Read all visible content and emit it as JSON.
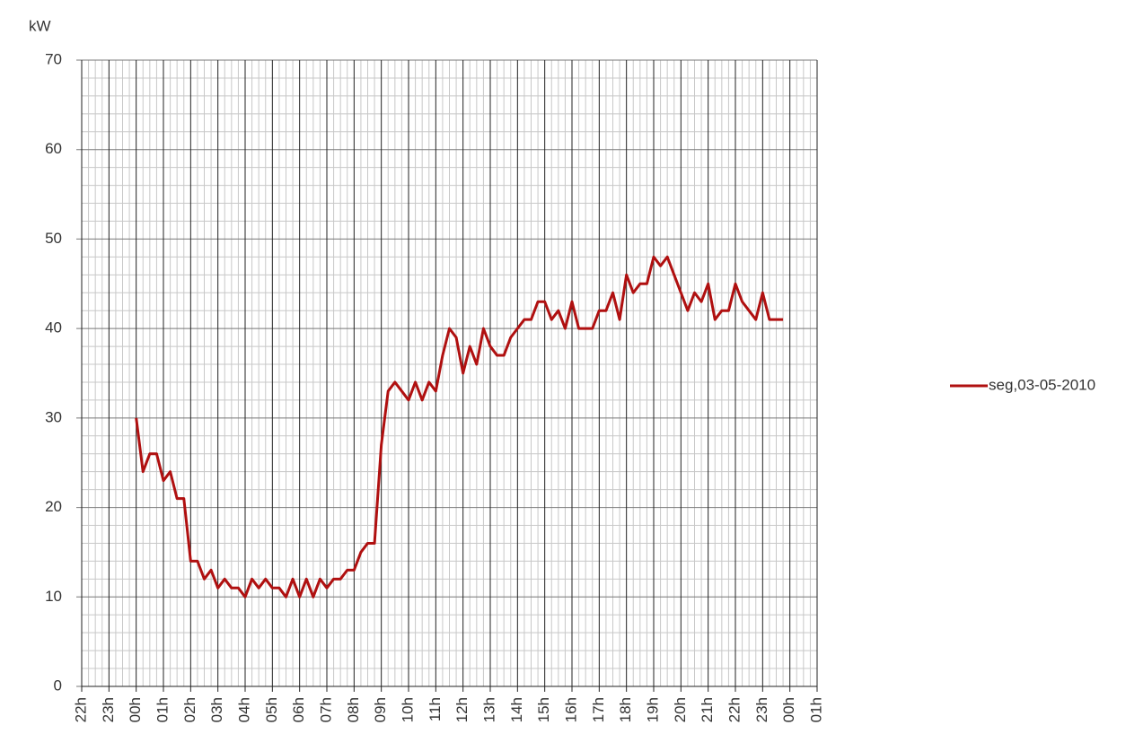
{
  "chart_data": {
    "type": "line",
    "y_label": "kW",
    "categories": [
      "22h",
      null,
      null,
      null,
      "23h",
      null,
      null,
      null,
      "00h",
      null,
      null,
      null,
      "01h",
      null,
      null,
      null,
      "02h",
      null,
      null,
      null,
      "03h",
      null,
      null,
      null,
      "04h",
      null,
      null,
      null,
      "05h",
      null,
      null,
      null,
      "06h",
      null,
      null,
      null,
      "07h",
      null,
      null,
      null,
      "08h",
      null,
      null,
      null,
      "09h",
      null,
      null,
      null,
      "10h",
      null,
      null,
      null,
      "11h",
      null,
      null,
      null,
      "12h",
      null,
      null,
      null,
      "13h",
      null,
      null,
      null,
      "14h",
      null,
      null,
      null,
      "15h",
      null,
      null,
      null,
      "16h",
      null,
      null,
      null,
      "17h",
      null,
      null,
      null,
      "18h",
      null,
      null,
      null,
      "19h",
      null,
      null,
      null,
      "20h",
      null,
      null,
      null,
      "21h",
      null,
      null,
      null,
      "22h",
      null,
      null,
      null,
      "23h",
      null,
      null,
      null,
      "00h",
      null,
      null,
      null,
      "01h"
    ],
    "series": [
      {
        "name": "seg,03-05-2010",
        "color": "#b01010",
        "values": [
          null,
          null,
          null,
          null,
          null,
          null,
          null,
          null,
          30,
          24,
          26,
          26,
          23,
          24,
          21,
          21,
          14,
          14,
          12,
          13,
          11,
          12,
          11,
          11,
          10,
          12,
          11,
          12,
          11,
          11,
          10,
          12,
          10,
          12,
          10,
          12,
          11,
          12,
          12,
          13,
          13,
          15,
          16,
          16,
          27,
          33,
          34,
          33,
          32,
          34,
          32,
          34,
          33,
          37,
          40,
          39,
          35,
          38,
          36,
          40,
          38,
          37,
          37,
          39,
          40,
          41,
          41,
          43,
          43,
          41,
          42,
          40,
          43,
          40,
          40,
          40,
          42,
          42,
          44,
          41,
          46,
          44,
          45,
          45,
          48,
          47,
          48,
          46,
          44,
          42,
          44,
          43,
          45,
          41,
          42,
          42,
          45,
          43,
          42,
          41,
          44,
          41,
          41,
          41,
          null,
          null,
          null,
          null,
          null
        ]
      }
    ],
    "ylim": [
      0,
      70
    ],
    "yticks": [
      0,
      10,
      20,
      30,
      40,
      50,
      60,
      70
    ],
    "y_minor_ticks": [
      2,
      4,
      6,
      8,
      12,
      14,
      16,
      18,
      22,
      24,
      26,
      28,
      32,
      34,
      36,
      38,
      42,
      44,
      46,
      48,
      52,
      54,
      56,
      58,
      62,
      64,
      66,
      68
    ],
    "grid": true,
    "legend": "right"
  }
}
